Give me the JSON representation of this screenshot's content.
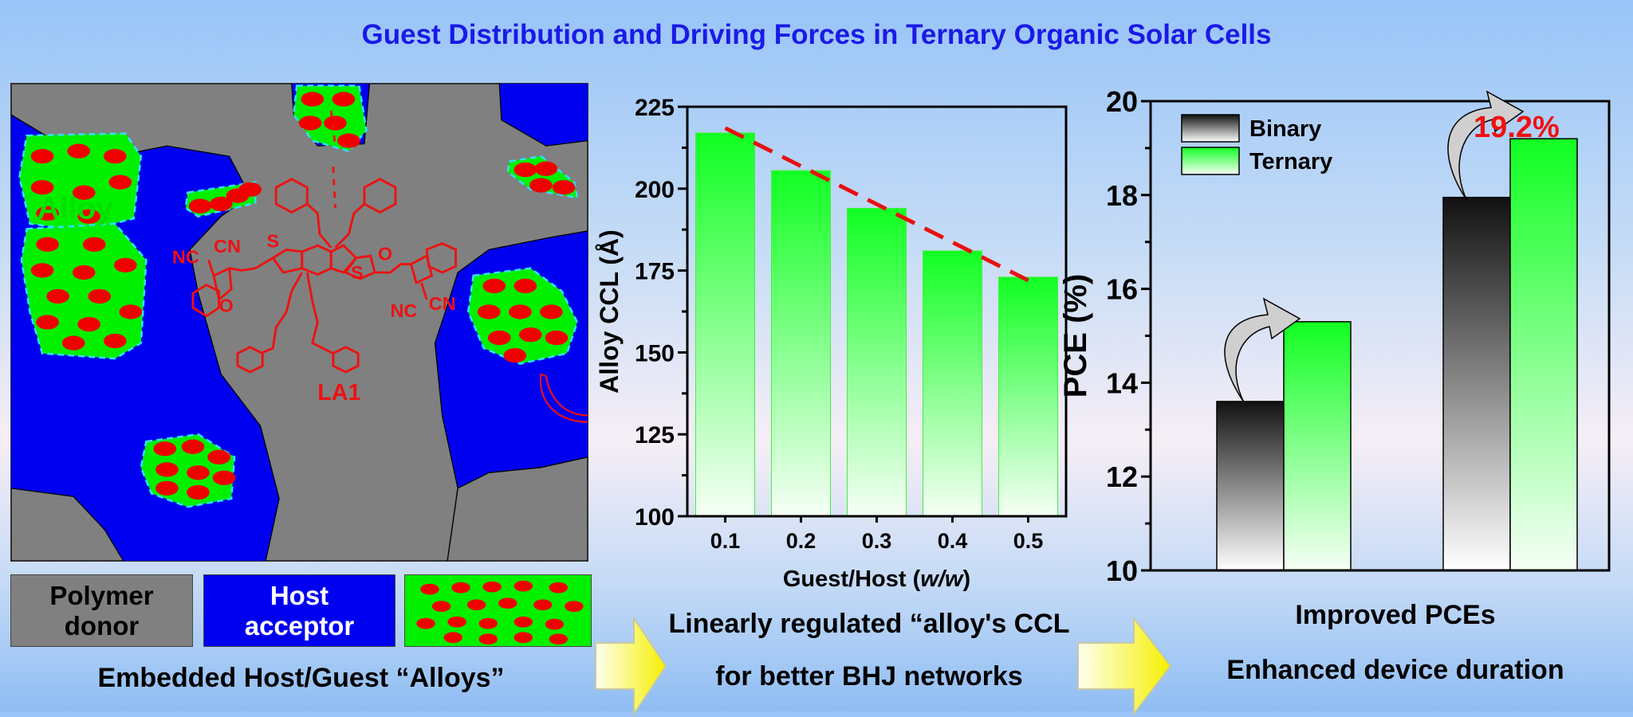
{
  "title": "Guest Distribution and Driving Forces in Ternary Organic Solar Cells",
  "diagram": {
    "alloy_label": "Alloy",
    "molecule_label": "LA1",
    "atom_labels": {
      "nc_left": "NC",
      "cn_left": "CN",
      "s_left": "S",
      "o_left": "O",
      "s_right": "S",
      "o_right": "O",
      "nc_right": "NC",
      "cn_right": "CN"
    },
    "colors": {
      "polymer_donor": "#808080",
      "host_acceptor": "#0000f0",
      "alloy": "#00f000",
      "guest": "#f00000",
      "alloy_border": "#30e0f0"
    }
  },
  "legend": {
    "polymer_donor": "Polymer donor",
    "host_acceptor": "Host acceptor"
  },
  "captions": {
    "left": "Embedded Host/Guest “Alloys”",
    "middle_line1": "Linearly regulated “alloy's CCL",
    "middle_line2": "for better BHJ networks",
    "right_line1": "Improved PCEs",
    "right_line2": "Enhanced device duration"
  },
  "chart_data": [
    {
      "type": "bar",
      "xlabel": "Guest/Host (w/w)",
      "xlabel_parts": [
        "Guest/Host (",
        "w/w",
        ")"
      ],
      "ylabel": "Alloy CCL (Å)",
      "categories": [
        "0.1",
        "0.2",
        "0.3",
        "0.4",
        "0.5"
      ],
      "values": [
        217,
        205.5,
        194,
        181,
        173
      ],
      "ylim": [
        100,
        225
      ],
      "yticks": [
        "100",
        "125",
        "150",
        "175",
        "200",
        "225"
      ],
      "trend_line": {
        "style": "dashed",
        "color": "#e81010",
        "from": [
          0.1,
          218.5
        ],
        "to": [
          0.5,
          172
        ]
      },
      "bar_color": "#11ff22",
      "grid": false
    },
    {
      "type": "bar",
      "ylabel": "PCE (%)",
      "categories": [
        "",
        ""
      ],
      "series": [
        {
          "name": "Binary",
          "values": [
            13.6,
            17.95
          ],
          "color": "#111111"
        },
        {
          "name": "Ternary",
          "values": [
            15.3,
            19.2
          ],
          "color": "#11ff22"
        }
      ],
      "ylim": [
        10,
        20
      ],
      "yticks": [
        "10",
        "12",
        "14",
        "16",
        "18",
        "20"
      ],
      "annotation": "19.2%",
      "annotation_color": "#f01010",
      "legend": "top-left",
      "grid": false
    }
  ]
}
